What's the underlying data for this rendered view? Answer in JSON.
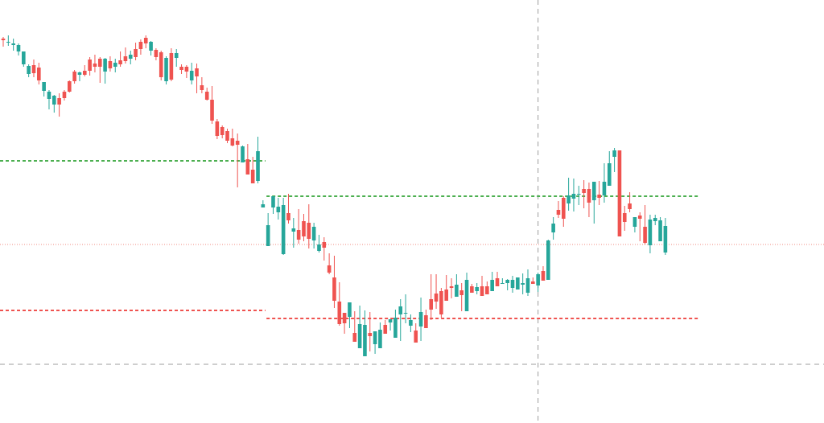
{
  "chart_data": {
    "type": "candlestick",
    "title": "",
    "xlabel": "",
    "ylabel": "",
    "ylim": [
      0,
      526
    ],
    "grid": false,
    "legend": "none",
    "colors": {
      "up": "#26a69a",
      "down": "#ef5350",
      "support_line": "#ef5350",
      "resistance_line": "#4caf50",
      "price_line": "#f28b82",
      "crosshair": "#9e9e9e"
    },
    "candles": [
      [
        478,
        476,
        480,
        468
      ],
      [
        473,
        474,
        482,
        469
      ],
      [
        470,
        472,
        478,
        463
      ],
      [
        462,
        470,
        472,
        457
      ],
      [
        446,
        462,
        462,
        443
      ],
      [
        434,
        444,
        446,
        430
      ],
      [
        445,
        435,
        452,
        430
      ],
      [
        442,
        426,
        448,
        421
      ],
      [
        413,
        424,
        424,
        406
      ],
      [
        403,
        412,
        414,
        390
      ],
      [
        396,
        407,
        408,
        386
      ],
      [
        404,
        396,
        410,
        381
      ],
      [
        412,
        404,
        414,
        401
      ],
      [
        425,
        412,
        426,
        411
      ],
      [
        437,
        425,
        439,
        422
      ],
      [
        433,
        436,
        437,
        425
      ],
      [
        438,
        433,
        445,
        431
      ],
      [
        452,
        438,
        455,
        432
      ],
      [
        447,
        443,
        458,
        436
      ],
      [
        453,
        443,
        455,
        423
      ],
      [
        437,
        453,
        454,
        422
      ],
      [
        450,
        441,
        456,
        437
      ],
      [
        443,
        448,
        453,
        436
      ],
      [
        451,
        446,
        462,
        443
      ],
      [
        456,
        450,
        467,
        447
      ],
      [
        453,
        458,
        463,
        446
      ],
      [
        465,
        455,
        473,
        451
      ],
      [
        474,
        465,
        477,
        458
      ],
      [
        479,
        472,
        482,
        466
      ],
      [
        463,
        474,
        475,
        457
      ],
      [
        464,
        455,
        466,
        451
      ],
      [
        461,
        430,
        463,
        426
      ],
      [
        425,
        454,
        456,
        421
      ],
      [
        460,
        427,
        466,
        425
      ],
      [
        454,
        460,
        465,
        443
      ],
      [
        443,
        439,
        446,
        434
      ],
      [
        443,
        437,
        445,
        429
      ],
      [
        426,
        438,
        448,
        421
      ],
      [
        441,
        431,
        447,
        410
      ],
      [
        420,
        414,
        430,
        410
      ],
      [
        412,
        402,
        417,
        401
      ],
      [
        402,
        376,
        419,
        372
      ],
      [
        375,
        357,
        378,
        353
      ],
      [
        368,
        358,
        370,
        354
      ],
      [
        363,
        351,
        366,
        348
      ],
      [
        354,
        345,
        366,
        344
      ],
      [
        351,
        346,
        360,
        293
      ],
      [
        324,
        344,
        345,
        339
      ],
      [
        328,
        309,
        347,
        310
      ],
      [
        315,
        298,
        331,
        298
      ],
      [
        301,
        338,
        356,
        298
      ],
      [
        268,
        272,
        277,
        268
      ],
      [
        220,
        246,
        261,
        223
      ],
      [
        268,
        282,
        279,
        260
      ],
      [
        262,
        269,
        280,
        253
      ],
      [
        210,
        271,
        280,
        209
      ],
      [
        261,
        252,
        285,
        248
      ],
      [
        238,
        242,
        255,
        218
      ],
      [
        240,
        228,
        266,
        223
      ],
      [
        251,
        232,
        260,
        226
      ],
      [
        249,
        229,
        272,
        217
      ],
      [
        227,
        244,
        249,
        217
      ],
      [
        214,
        222,
        234,
        212
      ],
      [
        225,
        218,
        231,
        202
      ],
      [
        196,
        187,
        211,
        185
      ],
      [
        181,
        152,
        208,
        143
      ],
      [
        151,
        123,
        175,
        121
      ],
      [
        137,
        124,
        132,
        111
      ],
      [
        132,
        150,
        143,
        118
      ],
      [
        112,
        101,
        139,
        106
      ],
      [
        93,
        123,
        146,
        94
      ],
      [
        83,
        122,
        140,
        90
      ],
      [
        112,
        108,
        138,
        89
      ],
      [
        98,
        114,
        114,
        86
      ],
      [
        93,
        116,
        125,
        94
      ],
      [
        122,
        111,
        128,
        115
      ],
      [
        125,
        129,
        125,
        115
      ],
      [
        106,
        131,
        141,
        126
      ],
      [
        135,
        145,
        154,
        102
      ],
      [
        136,
        137,
        160,
        124
      ],
      [
        121,
        128,
        135,
        113
      ],
      [
        115,
        100,
        124,
        103
      ],
      [
        120,
        138,
        156,
        102
      ],
      [
        134,
        118,
        141,
        121
      ],
      [
        154,
        141,
        185,
        128
      ],
      [
        161,
        151,
        185,
        142
      ],
      [
        164,
        135,
        168,
        131
      ],
      [
        166,
        152,
        184,
        153
      ],
      [
        170,
        168,
        180,
        155
      ],
      [
        157,
        172,
        185,
        163
      ],
      [
        165,
        159,
        174,
        139
      ],
      [
        139,
        178,
        187,
        140
      ],
      [
        170,
        162,
        173,
        167
      ],
      [
        164,
        169,
        174,
        160
      ],
      [
        170,
        158,
        183,
        161
      ],
      [
        170,
        160,
        176,
        167
      ],
      [
        164,
        178,
        188,
        166
      ],
      [
        180,
        170,
        188,
        175
      ],
      [
        174,
        174,
        180,
        173
      ],
      [
        174,
        178,
        179,
        165
      ],
      [
        168,
        178,
        183,
        162
      ],
      [
        166,
        181,
        181,
        166
      ],
      [
        172,
        174,
        186,
        160
      ],
      [
        162,
        180,
        191,
        158
      ],
      [
        176,
        173,
        181,
        173
      ],
      [
        171,
        185,
        187,
        163
      ],
      [
        189,
        177,
        195,
        178
      ],
      [
        178,
        227,
        228,
        181
      ],
      [
        237,
        248,
        256,
        228
      ],
      [
        265,
        259,
        276,
        255
      ],
      [
        280,
        254,
        282,
        244
      ],
      [
        273,
        283,
        305,
        264
      ],
      [
        279,
        285,
        304,
        263
      ],
      [
        285,
        285,
        295,
        271
      ],
      [
        291,
        286,
        302,
        267
      ],
      [
        291,
        274,
        299,
        256
      ],
      [
        277,
        300,
        297,
        248
      ],
      [
        284,
        280,
        301,
        271
      ],
      [
        283,
        300,
        323,
        274
      ],
      [
        295,
        323,
        338,
        309
      ],
      [
        331,
        339,
        342,
        312
      ],
      [
        339,
        232,
        339,
        234
      ],
      [
        261,
        250,
        270,
        239
      ],
      [
        273,
        266,
        287,
        262
      ],
      [
        244,
        256,
        253,
        237
      ],
      [
        258,
        254,
        262,
        226
      ],
      [
        244,
        224,
        271,
        222
      ],
      [
        221,
        253,
        259,
        211
      ],
      [
        251,
        255,
        259,
        246
      ],
      [
        226,
        252,
        256,
        237
      ],
      [
        212,
        245,
        255,
        209
      ]
    ],
    "levels": [
      {
        "kind": "resistance",
        "from_candle": 0,
        "to_candle": 51,
        "value": 326
      },
      {
        "kind": "resistance",
        "from_candle": 52,
        "to_candle": 136,
        "value": 282
      },
      {
        "kind": "support",
        "from_candle": 0,
        "to_candle": 51,
        "value": 140
      },
      {
        "kind": "support",
        "from_candle": 52,
        "to_candle": 136,
        "value": 130
      }
    ],
    "last_price": 222,
    "crosshair": {
      "candle": 105,
      "value": 73
    }
  }
}
